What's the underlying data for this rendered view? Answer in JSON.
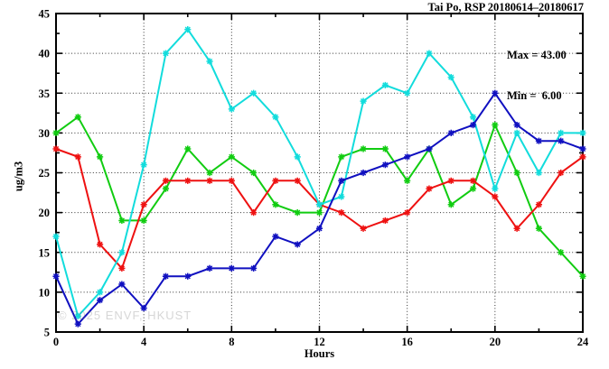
{
  "chart_data": {
    "type": "line",
    "title": "Tai Po, RSP 20180614–20180617",
    "xlabel": "Hours",
    "ylabel": "ug/m3",
    "xlim": [
      0,
      24
    ],
    "ylim": [
      5,
      45
    ],
    "xticks": [
      0,
      4,
      8,
      12,
      16,
      20,
      24
    ],
    "yticks": [
      5,
      10,
      15,
      20,
      25,
      30,
      35,
      40,
      45
    ],
    "x_minor_step": 2,
    "y_minor_step": 2.5,
    "grid": true,
    "legend": "none",
    "x": [
      0,
      1,
      2,
      3,
      4,
      5,
      6,
      7,
      8,
      9,
      10,
      11,
      12,
      13,
      14,
      15,
      16,
      17,
      18,
      19,
      20,
      21,
      22,
      23,
      24
    ],
    "series": [
      {
        "name": "series-green",
        "color": "#11cc11",
        "values": [
          30,
          32,
          27,
          19,
          19,
          23,
          28,
          25,
          27,
          25,
          21,
          20,
          20,
          27,
          28,
          28,
          24,
          28,
          21,
          23,
          31,
          25,
          18,
          15,
          12
        ]
      },
      {
        "name": "series-red",
        "color": "#ee1111",
        "values": [
          28,
          27,
          16,
          13,
          21,
          24,
          24,
          24,
          24,
          20,
          24,
          24,
          21,
          20,
          18,
          19,
          20,
          23,
          24,
          24,
          22,
          18,
          21,
          25,
          27
        ]
      },
      {
        "name": "series-cyan",
        "color": "#12dcdc",
        "values": [
          17,
          7,
          10,
          15,
          26,
          40,
          43,
          39,
          33,
          35,
          32,
          27,
          21,
          22,
          34,
          36,
          35,
          40,
          37,
          32,
          23,
          30,
          25,
          30,
          30
        ]
      },
      {
        "name": "series-blue",
        "color": "#1010c0",
        "values": [
          12,
          6,
          9,
          11,
          8,
          12,
          12,
          13,
          13,
          13,
          17,
          16,
          18,
          24,
          25,
          26,
          27,
          28,
          30,
          31,
          35,
          31,
          29,
          29,
          28
        ]
      }
    ],
    "annotations": {
      "max_label": "Max = 43.00",
      "min_label": "Min =  6.00"
    },
    "watermark": "© 2025 ENVF, HKUST"
  }
}
